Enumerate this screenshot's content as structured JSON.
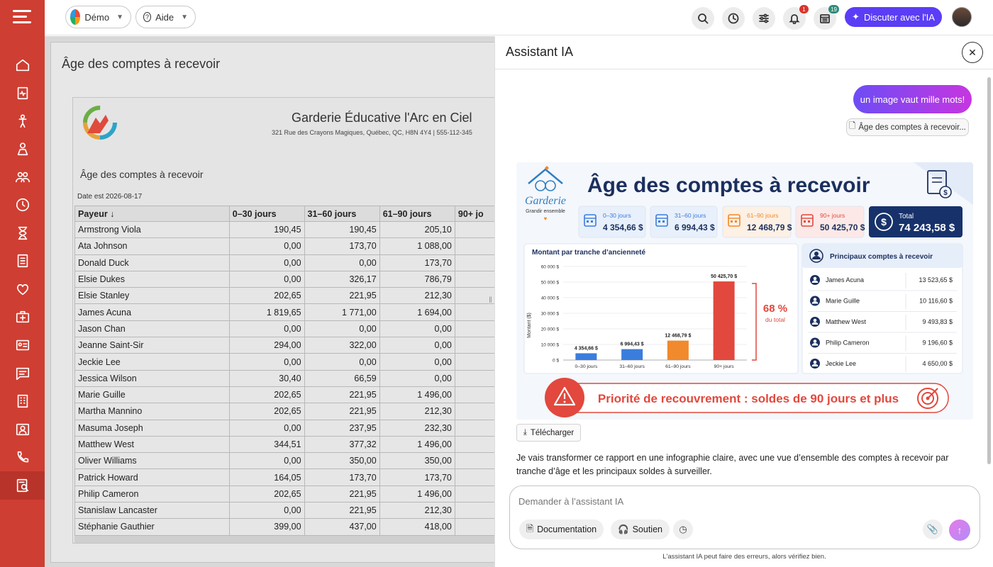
{
  "sidebar": {
    "menu_icon": "hamburger-icon",
    "items": [
      {
        "icon": "home-icon"
      },
      {
        "icon": "clipboard-pulse-icon"
      },
      {
        "icon": "child-icon"
      },
      {
        "icon": "staff-icon"
      },
      {
        "icon": "group-icon"
      },
      {
        "icon": "clock-icon"
      },
      {
        "icon": "hourglass-icon"
      },
      {
        "icon": "checklist-icon"
      },
      {
        "icon": "heart-icon"
      },
      {
        "icon": "medical-kit-icon"
      },
      {
        "icon": "id-card-icon"
      },
      {
        "icon": "message-icon"
      },
      {
        "icon": "building-icon"
      },
      {
        "icon": "contact-icon"
      },
      {
        "icon": "phone-icon"
      },
      {
        "icon": "report-icon",
        "active": true
      }
    ]
  },
  "topbar": {
    "org_label": "Démo",
    "help_label": "Aide",
    "notifications_badge": "1",
    "calendar_badge": "19",
    "chat_button": "Discuter avec l'IA"
  },
  "report": {
    "title": "Âge des comptes à recevoir",
    "org_name": "Garderie Éducative l'Arc en Ciel",
    "org_address": "321 Rue des Crayons Magiques, Québec, QC, H8N 4Y4 | 555-112-345",
    "subtitle": "Âge des comptes à recevoir",
    "date_line": "Date est 2026-08-17",
    "columns": [
      "Payeur ↓",
      "0–30 jours",
      "31–60 jours",
      "61–90 jours",
      "90+ jo"
    ],
    "rows": [
      [
        "Armstrong Viola",
        "190,45",
        "190,45",
        "205,10"
      ],
      [
        "Ata Johnson",
        "0,00",
        "173,70",
        "1 088,00"
      ],
      [
        "Donald Duck",
        "0,00",
        "0,00",
        "173,70"
      ],
      [
        "Elsie Dukes",
        "0,00",
        "326,17",
        "786,79"
      ],
      [
        "Elsie Stanley",
        "202,65",
        "221,95",
        "212,30"
      ],
      [
        "James Acuna",
        "1 819,65",
        "1 771,00",
        "1 694,00"
      ],
      [
        "Jason Chan",
        "0,00",
        "0,00",
        "0,00"
      ],
      [
        "Jeanne Saint-Sir",
        "294,00",
        "322,00",
        "0,00"
      ],
      [
        "Jeckie Lee",
        "0,00",
        "0,00",
        "0,00"
      ],
      [
        "Jessica Wilson",
        "30,40",
        "66,59",
        "0,00"
      ],
      [
        "Marie Guille",
        "202,65",
        "221,95",
        "1 496,00"
      ],
      [
        "Martha Mannino",
        "202,65",
        "221,95",
        "212,30"
      ],
      [
        "Masuma Joseph",
        "0,00",
        "237,95",
        "232,30"
      ],
      [
        "Matthew West",
        "344,51",
        "377,32",
        "1 496,00"
      ],
      [
        "Oliver Williams",
        "0,00",
        "350,00",
        "350,00"
      ],
      [
        "Patrick Howard",
        "164,05",
        "173,70",
        "173,70"
      ],
      [
        "Philip Cameron",
        "202,65",
        "221,95",
        "1 496,00"
      ],
      [
        "Stanislaw Lancaster",
        "0,00",
        "221,95",
        "212,30"
      ],
      [
        "Stéphanie Gauthier",
        "399,00",
        "437,00",
        "418,00"
      ]
    ]
  },
  "panel": {
    "title": "Assistant IA",
    "user_message": "un image vaut mille mots!",
    "attachment": "Âge des comptes à recevoir...",
    "download_label": "Télécharger",
    "reply": "Je vais transformer ce rapport en une infographie claire, avec une vue d’ensemble des comptes à recevoir par tranche d’âge et les principaux soldes à surveiller.",
    "input_placeholder": "Demander à l’assistant IA",
    "doc_button": "Documentation",
    "support_button": "Soutien",
    "disclaimer": "L'assistant IA peut faire des erreurs, alors vérifiez bien."
  },
  "infographic": {
    "brand_name": "Garderie",
    "brand_tagline": "Grandir ensemble",
    "title": "Âge des comptes à recevoir",
    "kpis": [
      {
        "label": "0–30 jours",
        "value": "4 354,66 $",
        "color": "#3b7ddd"
      },
      {
        "label": "31–60 jours",
        "value": "6 994,43 $",
        "color": "#3b7ddd"
      },
      {
        "label": "61–90 jours",
        "value": "12 468,79 $",
        "color": "#f08a2c"
      },
      {
        "label": "90+ jours",
        "value": "50 425,70 $",
        "color": "#e2483d"
      }
    ],
    "total_label": "Total",
    "total_value": "74 243,58 $",
    "top_title": "Principaux comptes à recevoir",
    "top_accounts": [
      {
        "name": "James Acuna",
        "amount": "13 523,65 $"
      },
      {
        "name": "Marie Guille",
        "amount": "10 116,60 $"
      },
      {
        "name": "Matthew West",
        "amount": "9 493,83 $"
      },
      {
        "name": "Philip Cameron",
        "amount": "9 196,60 $"
      },
      {
        "name": "Jeckie Lee",
        "amount": "4 650,00 $"
      }
    ],
    "percent": "68 %",
    "percent_caption": "du total",
    "banner": "Priorité de recouvrement : soldes de 90 jours et plus"
  },
  "chart_data": {
    "type": "bar",
    "title": "Montant par tranche d’ancienneté",
    "ylabel": "Montant ($)",
    "xlabel": "",
    "categories": [
      "0–30 jours",
      "31–60 jours",
      "61–90 jours",
      "90+ jours"
    ],
    "values": [
      4354.66,
      6994.43,
      12468.79,
      50425.7
    ],
    "value_labels": [
      "4 354,66 $",
      "6 994,43 $",
      "12 468,79 $",
      "50 425,70 $"
    ],
    "colors": [
      "#3b7ddd",
      "#3b7ddd",
      "#f08a2c",
      "#e2483d"
    ],
    "ylim": [
      0,
      60000
    ],
    "yticks": [
      0,
      10000,
      20000,
      30000,
      40000,
      50000,
      60000
    ],
    "ytick_labels": [
      "0 $",
      "10 000 $",
      "20 000 $",
      "30 000 $",
      "40 000 $",
      "50 000 $",
      "60 000 $"
    ],
    "grid": true
  }
}
